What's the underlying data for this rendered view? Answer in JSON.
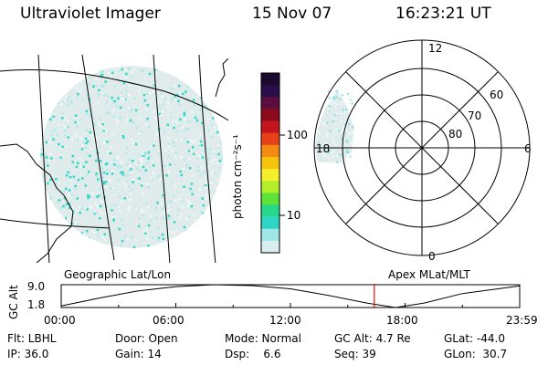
{
  "header": {
    "instrument": "Ultraviolet Imager",
    "date": "15 Nov 07",
    "time": "16:23:21 UT"
  },
  "colorbar": {
    "unit_label": "photon cm⁻²s⁻¹",
    "ticks": [
      "100",
      "10"
    ],
    "colors": [
      "#1a0a2e",
      "#2b0d4a",
      "#5b0e3e",
      "#8b0a1e",
      "#c4141c",
      "#e8401a",
      "#f38a12",
      "#f6c20e",
      "#f4ef2a",
      "#b5ee2a",
      "#5fe23a",
      "#28d88a",
      "#2fd6c6",
      "#9fe6e6",
      "#d9eeee"
    ]
  },
  "geo_map": {
    "label": "Geographic Lat/Lon"
  },
  "polar_plot": {
    "label": "Apex MLat/MLT",
    "mlt_labels": [
      "12",
      "6",
      "0",
      "18"
    ],
    "lat_labels": [
      "60",
      "70",
      "80"
    ]
  },
  "altitude_panel": {
    "ylabel": "GC Alt",
    "ytick_top": "9.0",
    "ytick_bottom": "1.8",
    "xticks": [
      "00:00",
      "06:00",
      "12:00",
      "18:00",
      "23:59"
    ]
  },
  "chart_data": {
    "type": "line",
    "title": "",
    "xlabel": "",
    "ylabel": "GC Alt",
    "ylim": [
      1.8,
      9.0
    ],
    "x": [
      0,
      2,
      4,
      6,
      8,
      10,
      12,
      14,
      16,
      17.5,
      19,
      21,
      23.98
    ],
    "values": [
      2.3,
      4.8,
      7.0,
      8.4,
      9.0,
      8.7,
      7.7,
      5.6,
      3.2,
      1.8,
      3.2,
      6.2,
      8.6
    ],
    "marker_time": 16.39
  },
  "status": {
    "flt": "Flt: LBHL",
    "ip": "IP: 36.0",
    "door": "Door: Open",
    "gain": "Gain: 14",
    "mode": "Mode: Normal",
    "dsp": "Dsp:    6.6",
    "gcalt": "GC Alt: 4.7 Re",
    "seq": "Seq: 39",
    "glat": "GLat: -44.0",
    "glon": "GLon:  30.7"
  }
}
